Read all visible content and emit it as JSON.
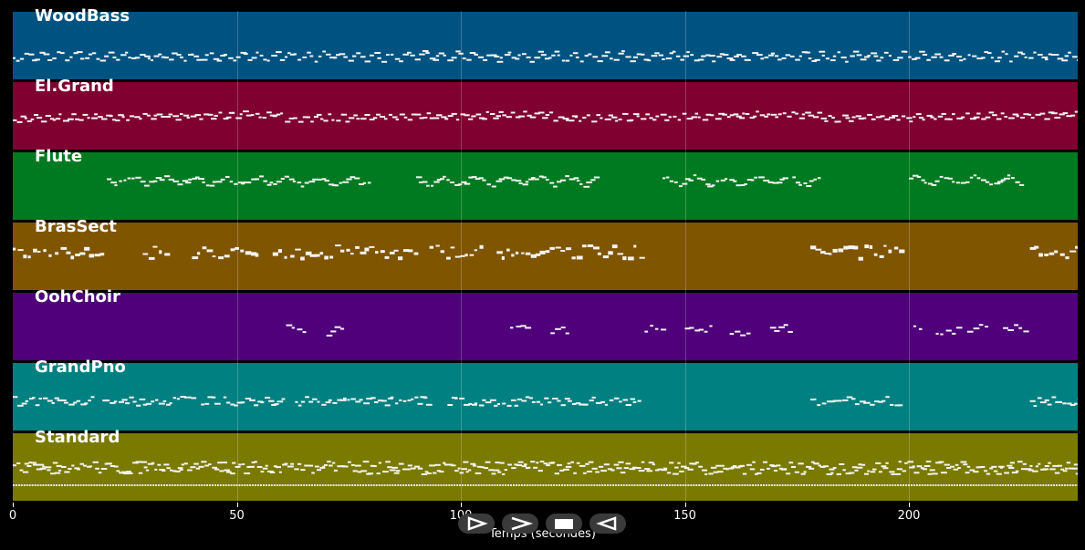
{
  "tracks": [
    {
      "name": "WoodBass",
      "color": "#005380",
      "pattern": "bass"
    },
    {
      "name": "El.Grand",
      "color": "#800030",
      "pattern": "grand"
    },
    {
      "name": "Flute",
      "color": "#007a20",
      "pattern": "flute"
    },
    {
      "name": "BrasSect",
      "color": "#805500",
      "pattern": "brass"
    },
    {
      "name": "OohChoir",
      "color": "#4f007a",
      "pattern": "choir"
    },
    {
      "name": "GrandPno",
      "color": "#008080",
      "pattern": "piano"
    },
    {
      "name": "Standard",
      "color": "#7a7a00",
      "pattern": "drums"
    }
  ],
  "axis": {
    "ticks": [
      "0",
      "50",
      "100",
      "150",
      "200"
    ],
    "tick_values": [
      0,
      50,
      100,
      150,
      200
    ],
    "max_seconds": 238,
    "label": "Temps (secondes)"
  },
  "controls": [
    {
      "name": "play-button",
      "icon": "play-icon"
    },
    {
      "name": "forward-button",
      "icon": "forward-icon"
    },
    {
      "name": "stop-button",
      "icon": "stop-icon"
    },
    {
      "name": "rewind-button",
      "icon": "rewind-icon"
    }
  ]
}
